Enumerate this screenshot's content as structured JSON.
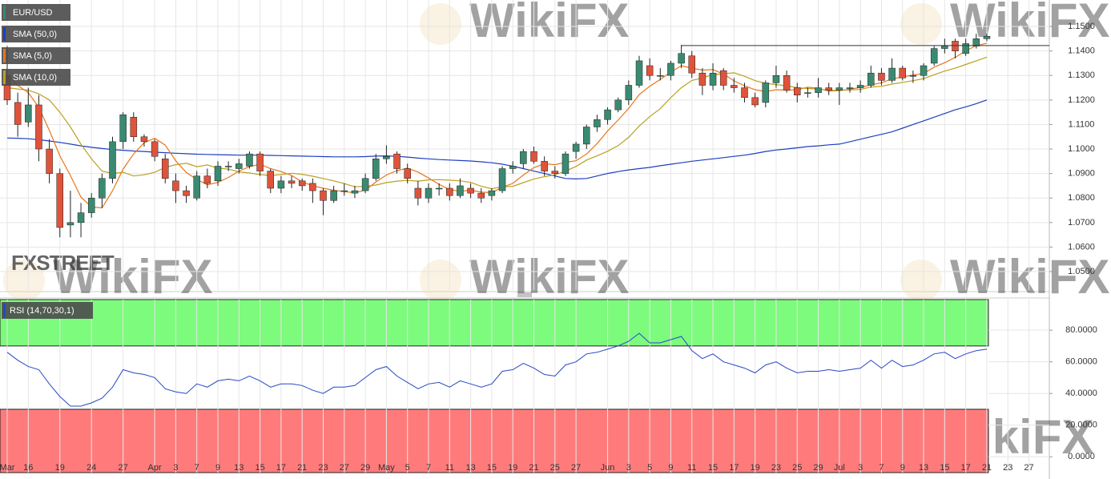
{
  "chart_data": [
    {
      "type": "candlestick",
      "title": "EUR/USD",
      "up_color": "#3a8a72",
      "down_color": "#e0533b",
      "categories": [
        "Mar",
        null,
        "16",
        null,
        null,
        "19",
        null,
        null,
        "24",
        null,
        null,
        "27",
        null,
        null,
        "Apr",
        null,
        "3",
        null,
        "7",
        null,
        "9",
        null,
        "13",
        null,
        "15",
        null,
        "17",
        null,
        "21",
        null,
        "23",
        null,
        "27",
        null,
        "29",
        null,
        "May",
        null,
        "5",
        null,
        "7",
        null,
        "11",
        null,
        "13",
        null,
        "15",
        null,
        "19",
        null,
        "21",
        null,
        "25",
        null,
        "27",
        null,
        null,
        "Jun",
        null,
        "3",
        null,
        "5",
        null,
        "9",
        null,
        "11",
        null,
        "15",
        null,
        "17",
        null,
        "19",
        null,
        "23",
        null,
        "25",
        null,
        "29",
        null,
        "Jul",
        null,
        "3",
        null,
        "7",
        null,
        "9",
        null,
        "13",
        null,
        "15",
        null,
        "17",
        null,
        "21",
        null,
        "23",
        null,
        "27"
      ],
      "open": [
        1.13,
        1.119,
        1.111,
        1.118,
        1.1,
        1.09,
        1.069,
        1.07,
        1.074,
        1.08,
        1.088,
        1.103,
        1.113,
        1.105,
        1.103,
        1.096,
        1.087,
        1.083,
        1.08,
        1.089,
        1.087,
        1.093,
        1.092,
        1.093,
        1.098,
        1.091,
        1.084,
        1.087,
        1.087,
        1.086,
        1.083,
        1.079,
        1.083,
        1.082,
        1.083,
        1.088,
        1.096,
        1.098,
        1.092,
        1.084,
        1.08,
        1.084,
        1.084,
        1.081,
        1.084,
        1.082,
        1.081,
        1.083,
        1.092,
        1.094,
        1.099,
        1.095,
        1.091,
        1.09,
        1.099,
        1.102,
        1.109,
        1.112,
        1.116,
        1.12,
        1.126,
        1.134,
        1.13,
        1.13,
        1.135,
        1.138,
        1.131,
        1.126,
        1.132,
        1.126,
        1.125,
        1.121,
        1.119,
        1.127,
        1.13,
        1.125,
        1.123,
        1.123,
        1.125,
        1.124,
        1.125,
        1.125,
        1.126,
        1.131,
        1.128,
        1.133,
        1.13,
        1.13,
        1.135,
        1.141,
        1.144,
        1.139,
        1.142,
        1.145,
        null,
        null,
        null,
        null
      ],
      "high": [
        1.142,
        1.123,
        1.125,
        1.122,
        1.104,
        1.092,
        1.083,
        1.078,
        1.082,
        1.09,
        1.105,
        1.115,
        1.115,
        1.106,
        1.104,
        1.098,
        1.09,
        1.085,
        1.091,
        1.092,
        1.095,
        1.095,
        1.096,
        1.099,
        1.099,
        1.092,
        1.089,
        1.089,
        1.088,
        1.088,
        1.084,
        1.085,
        1.086,
        1.085,
        1.09,
        1.098,
        1.1015,
        1.099,
        1.094,
        1.087,
        1.086,
        1.086,
        1.086,
        1.088,
        1.086,
        1.084,
        1.084,
        1.093,
        1.095,
        1.1,
        1.101,
        1.097,
        1.093,
        1.099,
        1.103,
        1.11,
        1.114,
        1.117,
        1.121,
        1.128,
        1.138,
        1.137,
        1.133,
        1.136,
        1.1425,
        1.14,
        1.133,
        1.135,
        1.133,
        1.129,
        1.127,
        1.123,
        1.128,
        1.134,
        1.132,
        1.127,
        1.125,
        1.129,
        1.127,
        1.127,
        1.127,
        1.128,
        1.134,
        1.133,
        1.137,
        1.134,
        1.132,
        1.135,
        1.142,
        1.145,
        1.145,
        1.145,
        1.147,
        1.147,
        null,
        null,
        null,
        null
      ],
      "low": [
        1.118,
        1.105,
        1.109,
        1.095,
        1.086,
        1.064,
        1.064,
        1.064,
        1.072,
        1.076,
        1.086,
        1.1,
        1.103,
        1.101,
        1.095,
        1.086,
        1.078,
        1.078,
        1.079,
        1.084,
        1.085,
        1.091,
        1.09,
        1.092,
        1.089,
        1.082,
        1.082,
        1.084,
        1.083,
        1.078,
        1.073,
        1.078,
        1.081,
        1.08,
        1.082,
        1.087,
        1.094,
        1.09,
        1.086,
        1.077,
        1.078,
        1.081,
        1.079,
        1.08,
        1.08,
        1.078,
        1.079,
        1.082,
        1.09,
        1.092,
        1.094,
        1.089,
        1.088,
        1.089,
        1.096,
        1.1,
        1.107,
        1.11,
        1.115,
        1.118,
        1.125,
        1.128,
        1.128,
        1.128,
        1.133,
        1.129,
        1.122,
        1.124,
        1.124,
        1.123,
        1.119,
        1.117,
        1.117,
        1.125,
        1.123,
        1.119,
        1.121,
        1.121,
        1.122,
        1.118,
        1.123,
        1.123,
        1.125,
        1.126,
        1.127,
        1.128,
        1.127,
        1.128,
        1.134,
        1.139,
        1.137,
        1.138,
        1.141,
        1.144,
        null,
        null,
        null,
        null
      ],
      "close": [
        1.12,
        1.11,
        1.118,
        1.1,
        1.09,
        1.068,
        1.07,
        1.074,
        1.08,
        1.088,
        1.103,
        1.114,
        1.105,
        1.103,
        1.097,
        1.088,
        1.083,
        1.081,
        1.089,
        1.086,
        1.093,
        1.093,
        1.094,
        1.098,
        1.091,
        1.084,
        1.087,
        1.086,
        1.085,
        1.083,
        1.079,
        1.083,
        1.083,
        1.083,
        1.088,
        1.096,
        1.097,
        1.092,
        1.088,
        1.08,
        1.084,
        1.084,
        1.081,
        1.085,
        1.082,
        1.08,
        1.083,
        1.092,
        1.093,
        1.099,
        1.095,
        1.091,
        1.09,
        1.098,
        1.102,
        1.109,
        1.112,
        1.116,
        1.12,
        1.126,
        1.136,
        1.13,
        1.13,
        1.135,
        1.139,
        1.131,
        1.126,
        1.131,
        1.126,
        1.125,
        1.121,
        1.118,
        1.127,
        1.13,
        1.124,
        1.122,
        1.123,
        1.125,
        1.124,
        1.125,
        1.125,
        1.126,
        1.131,
        1.128,
        1.133,
        1.129,
        1.13,
        1.134,
        1.141,
        1.142,
        1.14,
        1.143,
        1.145,
        1.146,
        null,
        null,
        null,
        null
      ],
      "series": [
        {
          "name": "SMA (50,0)",
          "color": "#1d3fbf",
          "values": [
            1.1045,
            1.1044,
            1.1042,
            1.1038,
            1.1033,
            1.1027,
            1.102,
            1.1013,
            1.1007,
            1.1002,
            1.0998,
            1.0995,
            1.0992,
            1.099,
            1.0987,
            1.0985,
            1.0983,
            1.0981,
            1.0979,
            1.0978,
            1.0977,
            1.0976,
            1.0975,
            1.0975,
            1.0975,
            1.0974,
            1.0973,
            1.0972,
            1.0971,
            1.097,
            1.0969,
            1.0968,
            1.0968,
            1.0968,
            1.0969,
            1.0971,
            1.0972,
            1.097,
            1.0967,
            1.0963,
            1.096,
            1.0957,
            1.0955,
            1.0953,
            1.0951,
            1.0948,
            1.0944,
            1.0938,
            1.093,
            1.092,
            1.091,
            1.09,
            1.089,
            1.088,
            1.0878,
            1.088,
            1.089,
            1.09,
            1.0908,
            1.0915,
            1.092,
            1.0925,
            1.0932,
            1.0938,
            1.0944,
            1.095,
            1.0955,
            1.096,
            1.0965,
            1.097,
            1.0975,
            1.0982,
            1.099,
            1.0996,
            1.1,
            1.1005,
            1.101,
            1.1013,
            1.1017,
            1.102,
            1.103,
            1.104,
            1.105,
            1.106,
            1.107,
            1.1085,
            1.11,
            1.1115,
            1.113,
            1.1145,
            1.116,
            1.1172,
            1.1185,
            1.12,
            null,
            null,
            null,
            null
          ]
        },
        {
          "name": "SMA (5,0)",
          "color": "#e8761c",
          "values": [
            1.13,
            1.126,
            1.123,
            1.117,
            1.1076,
            1.0972,
            1.0892,
            1.0804,
            1.0764,
            1.076,
            1.083,
            1.0918,
            1.098,
            1.1026,
            1.1044,
            1.1016,
            1.0952,
            1.0904,
            1.0876,
            1.0854,
            1.0864,
            1.0884,
            1.091,
            1.0928,
            1.0938,
            1.092,
            1.0908,
            1.0892,
            1.0866,
            1.085,
            1.084,
            1.0832,
            1.0826,
            1.0822,
            1.0832,
            1.0866,
            1.0894,
            1.0912,
            1.0922,
            1.0906,
            1.0882,
            1.0856,
            1.0834,
            1.0828,
            1.0832,
            1.0824,
            1.0822,
            1.0844,
            1.086,
            1.0894,
            1.0924,
            1.094,
            1.0936,
            1.0946,
            1.0952,
            1.098,
            1.1022,
            1.1074,
            1.1118,
            1.1166,
            1.1222,
            1.1256,
            1.1284,
            1.1314,
            1.134,
            1.133,
            1.1322,
            1.1324,
            1.1306,
            1.1278,
            1.1258,
            1.1242,
            1.1234,
            1.1242,
            1.124,
            1.1242,
            1.1252,
            1.1248,
            1.1236,
            1.1238,
            1.1244,
            1.1251,
            1.1262,
            1.127,
            1.1286,
            1.1294,
            1.1302,
            1.1308,
            1.1334,
            1.1352,
            1.1374,
            1.14,
            1.1422,
            1.1432,
            null,
            null,
            null,
            null
          ]
        },
        {
          "name": "SMA (10,0)",
          "color": "#b9a122",
          "values": [
            1.125,
            1.1245,
            1.124,
            1.1225,
            1.12,
            1.115,
            1.109,
            1.102,
            1.096,
            1.091,
            1.09,
            1.0905,
            1.089,
            1.0895,
            1.0905,
            1.0925,
            1.0936,
            1.0942,
            1.0928,
            1.0935,
            1.0922,
            1.0918,
            1.0907,
            1.0902,
            1.0896,
            1.0892,
            1.0896,
            1.0901,
            1.0897,
            1.0889,
            1.088,
            1.087,
            1.0859,
            1.0846,
            1.0848,
            1.0853,
            1.0863,
            1.0869,
            1.0872,
            1.0869,
            1.0874,
            1.0875,
            1.0873,
            1.087,
            1.0864,
            1.0848,
            1.0838,
            1.0846,
            1.0848,
            1.0863,
            1.0878,
            1.0887,
            1.0895,
            1.091,
            1.0929,
            1.0955,
            1.0972,
            1.0991,
            1.1014,
            1.1048,
            1.1094,
            1.1132,
            1.1165,
            1.121,
            1.125,
            1.128,
            1.129,
            1.1304,
            1.1307,
            1.1311,
            1.1297,
            1.1279,
            1.1268,
            1.1263,
            1.1258,
            1.125,
            1.1247,
            1.1245,
            1.1239,
            1.124,
            1.1241,
            1.1243,
            1.1253,
            1.1256,
            1.1265,
            1.1272,
            1.1279,
            1.1287,
            1.1303,
            1.1318,
            1.133,
            1.1345,
            1.136,
            1.1375,
            null,
            null,
            null,
            null
          ]
        }
      ],
      "levels": [
        1.1422
      ],
      "ylim": [
        1.0425,
        1.1608
      ],
      "yticks": [
        {
          "value": 1.05,
          "label": "1.0500"
        },
        {
          "value": 1.06,
          "label": "1.0600"
        },
        {
          "value": 1.07,
          "label": "1.0700"
        },
        {
          "value": 1.08,
          "label": "1.0800"
        },
        {
          "value": 1.09,
          "label": "1.0900"
        },
        {
          "value": 1.1,
          "label": "1.1000"
        },
        {
          "value": 1.11,
          "label": "1.1100"
        },
        {
          "value": 1.12,
          "label": "1.1200"
        },
        {
          "value": 1.13,
          "label": "1.1300"
        },
        {
          "value": 1.14,
          "label": "1.1400"
        },
        {
          "value": 1.15,
          "label": "1.1500"
        }
      ],
      "grid": true,
      "logo": "FXSTREET",
      "watermark": "WikiFX"
    },
    {
      "type": "line",
      "title": "RSI (14,70,30,1)",
      "color": "#2747c4",
      "values": [
        66,
        61,
        57,
        55,
        46,
        38,
        32,
        32,
        34,
        37,
        44,
        55,
        53,
        52,
        50,
        43,
        41,
        40,
        46,
        44,
        48,
        49,
        48,
        51,
        48,
        44,
        46,
        46,
        45,
        42,
        40,
        44,
        44,
        45,
        50,
        55,
        57,
        51,
        47,
        43,
        46,
        47,
        44,
        48,
        46,
        44,
        46,
        54,
        55,
        59,
        56,
        52,
        51,
        58,
        60,
        65,
        66,
        68,
        70,
        73,
        78,
        72,
        72,
        74,
        76,
        67,
        62,
        65,
        60,
        58,
        56,
        53,
        58,
        60,
        56,
        53,
        54,
        54,
        55,
        54,
        55,
        56,
        61,
        56,
        61,
        57,
        58,
        61,
        65,
        66,
        62,
        65,
        67,
        68,
        null,
        null,
        null,
        null
      ],
      "overbought": 70,
      "oversold": 30,
      "overbought_color": "#7dfb7d",
      "oversold_color": "#ff7b7b",
      "ylim": [
        -10,
        99.3
      ],
      "yticks": [
        {
          "value": 0,
          "label": "0.0000"
        },
        {
          "value": 20,
          "label": "20.0000"
        },
        {
          "value": 40,
          "label": "40.0000"
        },
        {
          "value": 60,
          "label": "60.0000"
        },
        {
          "value": 80,
          "label": "80.0000"
        }
      ],
      "grid": true
    }
  ]
}
